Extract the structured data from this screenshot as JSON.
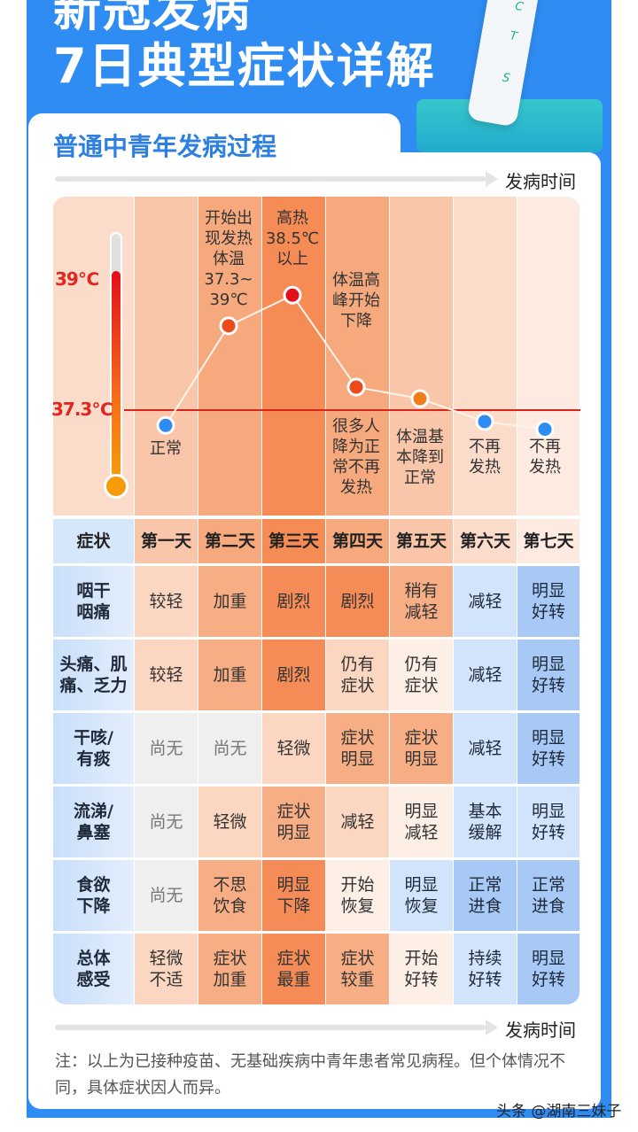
{
  "header": {
    "title_line1": "新冠发病",
    "title_line2": "7日典型症状详解",
    "kit_letters": [
      "C",
      "T",
      "S"
    ]
  },
  "card": {
    "title": "普通中青年发病过程",
    "axis_label_top": "发病时间",
    "axis_label_bottom": "发病时间"
  },
  "colors": {
    "background_blue": "#2f8cf2",
    "title_blue": "#2d7fe0",
    "threshold_red": "#d8261d"
  },
  "chart_data": {
    "type": "line",
    "title": "",
    "categories": [
      "第一天",
      "第二天",
      "第三天",
      "第四天",
      "第五天",
      "第六天",
      "第七天"
    ],
    "reference_lines": [
      {
        "label": "39℃",
        "value": 39
      },
      {
        "label": "37.3℃",
        "value": 37.3
      }
    ],
    "series": [
      {
        "values": [
          37.1,
          38.4,
          38.8,
          37.6,
          37.45,
          37.15,
          37.05
        ],
        "point_colors": [
          "#2f8cf2",
          "#ec4a18",
          "#e3101a",
          "#ec4a18",
          "#f27d18",
          "#2f8cf2",
          "#2f8cf2"
        ]
      }
    ],
    "annotations_above": [
      "",
      "开始出现发热体温37.3~39℃",
      "高热38.5℃以上",
      "体温高峰开始下降",
      "",
      "",
      ""
    ],
    "annotations_above_lines": [
      [],
      [
        "开始出",
        "现发热",
        "体温",
        "37.3~",
        "39℃"
      ],
      [
        "高热",
        "38.5℃",
        "以上"
      ],
      [
        "体温高",
        "峰开始",
        "下降"
      ],
      [],
      [],
      []
    ],
    "annotations_below_lines": [
      [
        "正常"
      ],
      [],
      [],
      [
        "很多人",
        "降为正",
        "常不再",
        "发热"
      ],
      [
        "体温基",
        "本降到",
        "正常"
      ],
      [
        "不再",
        "发热"
      ],
      [
        "不再",
        "发热"
      ]
    ]
  },
  "table": {
    "corner": "症状",
    "days": [
      "第一天",
      "第二天",
      "第三天",
      "第四天",
      "第五天",
      "第六天",
      "第七天"
    ],
    "rows": [
      {
        "symptom": "咽干\n咽痛",
        "cells": [
          "较轻",
          "加重",
          "剧烈",
          "剧烈",
          "稍有\n减轻",
          "减轻",
          "明显\n好转"
        ],
        "levels": [
          "p2",
          "p3",
          "p4",
          "p4",
          "p3",
          "b1",
          "b2"
        ]
      },
      {
        "symptom": "头痛、肌\n痛、乏力",
        "cells": [
          "较轻",
          "加重",
          "剧烈",
          "仍有\n症状",
          "仍有\n症状",
          "减轻",
          "明显\n好转"
        ],
        "levels": [
          "p2",
          "p3",
          "p4",
          "p2",
          "p1",
          "b1",
          "b2"
        ]
      },
      {
        "symptom": "干咳/\n有痰",
        "cells": [
          "尚无",
          "尚无",
          "轻微",
          "症状\n明显",
          "症状\n明显",
          "减轻",
          "明显\n好转"
        ],
        "levels": [
          "g",
          "g",
          "p2",
          "p3",
          "p3",
          "b1",
          "b2"
        ]
      },
      {
        "symptom": "流涕/\n鼻塞",
        "cells": [
          "尚无",
          "轻微",
          "症状\n明显",
          "减轻",
          "明显\n减轻",
          "基本\n缓解",
          "明显\n好转"
        ],
        "levels": [
          "g",
          "p2",
          "p3",
          "p2",
          "p1",
          "b1",
          "b1"
        ]
      },
      {
        "symptom": "食欲\n下降",
        "cells": [
          "尚无",
          "不思\n饮食",
          "明显\n下降",
          "开始\n恢复",
          "明显\n恢复",
          "正常\n进食",
          "正常\n进食"
        ],
        "levels": [
          "g",
          "p3",
          "p4",
          "p1",
          "b1",
          "b2",
          "b2"
        ]
      },
      {
        "symptom": "总体\n感受",
        "cells": [
          "轻微\n不适",
          "症状\n加重",
          "症状\n最重",
          "症状\n较重",
          "开始\n好转",
          "持续\n好转",
          "明显\n好转"
        ],
        "levels": [
          "p2",
          "p3",
          "p4",
          "p3",
          "p1",
          "b1",
          "b2"
        ]
      }
    ]
  },
  "note": "注：以上为已接种疫苗、无基础疾病中青年患者常见病程。但个体情况不同，具体症状因人而异。",
  "watermark": "头条 @湖南三妹子"
}
